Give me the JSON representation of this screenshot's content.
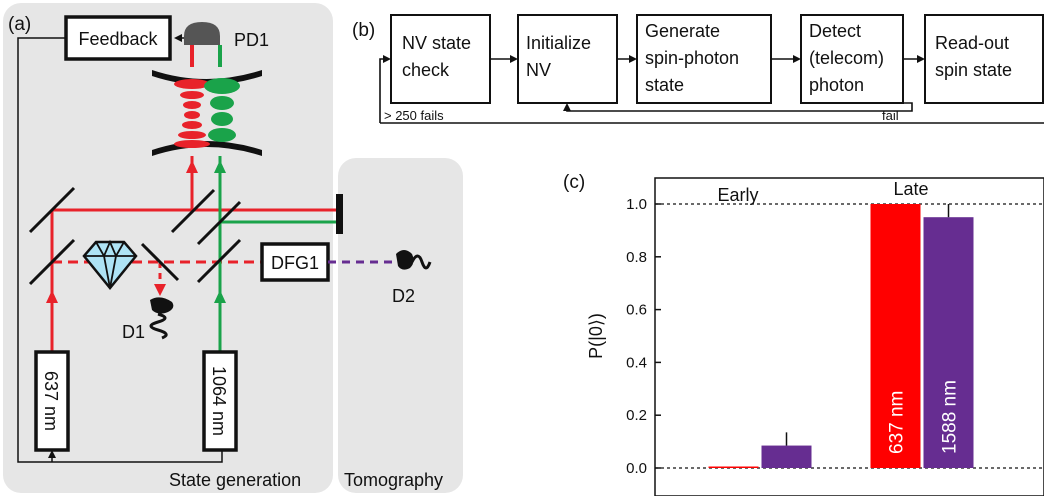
{
  "panel_a": {
    "label": "(a)",
    "feedback": "Feedback",
    "pd1": "PD1",
    "dfg1": "DFG1",
    "d1": "D1",
    "d2": "D2",
    "laser_637": "637 nm",
    "laser_1064": "1064 nm",
    "state_generation": "State generation",
    "tomography": "Tomography"
  },
  "panel_b": {
    "label": "(b)",
    "steps": [
      {
        "lines": [
          "NV state",
          "check"
        ]
      },
      {
        "lines": [
          "Initialize",
          "NV"
        ]
      },
      {
        "lines": [
          "Generate",
          "spin-photon",
          "state"
        ]
      },
      {
        "lines": [
          "Detect",
          "(telecom)",
          "photon"
        ]
      },
      {
        "lines": [
          "Read-out",
          "spin state"
        ]
      }
    ],
    "fails_label": "> 250 fails",
    "fail_label": "fail"
  },
  "panel_c": {
    "label": "(c)"
  },
  "chart_data": {
    "type": "bar",
    "ylabel": "P(|0⟩)",
    "ylim": [
      -0.08,
      1.08
    ],
    "yticks": [
      0.0,
      0.2,
      0.4,
      0.6,
      0.8,
      1.0
    ],
    "tick_labels": [
      "0.0",
      "0.2",
      "0.4",
      "0.6",
      "0.8",
      "1.0"
    ],
    "reference_lines": [
      0.0,
      1.0
    ],
    "groups": [
      "Early",
      "Late"
    ],
    "series": [
      {
        "name": "637 nm",
        "color": "#ff0000",
        "values": [
          0.0,
          1.0
        ],
        "errors": [
          0.0,
          0.0
        ]
      },
      {
        "name": "1588 nm",
        "color": "#662d91",
        "values": [
          0.085,
          0.95
        ],
        "errors": [
          0.05,
          0.05
        ]
      }
    ]
  }
}
